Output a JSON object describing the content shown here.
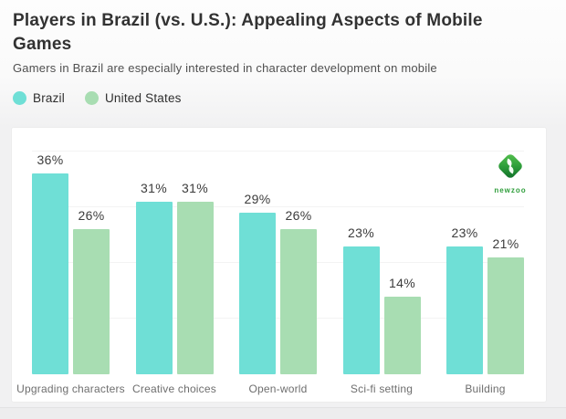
{
  "header": {
    "title": "Players in Brazil (vs. U.S.): Appealing Aspects of Mobile Games",
    "title_lines": [
      "Players in Brazil (vs. U.S.): Appealing Aspects of Mobile",
      "Games"
    ],
    "subtitle": "Gamers in Brazil are especially interested in character development on mobile"
  },
  "logo": {
    "text": "newzoo"
  },
  "colors": {
    "brazil": "#6fdfd6",
    "united_states": "#a8ddb2",
    "logo_green_light": "#45b44a",
    "logo_green_dark": "#136f2b",
    "card_background": "#ffffff",
    "page_background": "#f1f1f2"
  },
  "chart_data": {
    "type": "bar",
    "title": "Players in Brazil (vs. U.S.): Appealing Aspects of Mobile Games",
    "subtitle": "Gamers in Brazil are especially interested in character development on mobile",
    "categories": [
      "Upgrading characters",
      "Creative choices",
      "Open-world",
      "Sci-fi setting",
      "Building"
    ],
    "series": [
      {
        "name": "Brazil",
        "color": "#6fdfd6",
        "values": [
          36,
          31,
          29,
          23,
          23
        ]
      },
      {
        "name": "United States",
        "color": "#a8ddb2",
        "values": [
          26,
          31,
          26,
          14,
          21
        ]
      }
    ],
    "value_suffix": "%",
    "data_labels": true,
    "ylim": [
      0,
      40
    ],
    "grid": "horizontal",
    "gridline_step": 10,
    "legend_position": "top-left-above-chart"
  }
}
